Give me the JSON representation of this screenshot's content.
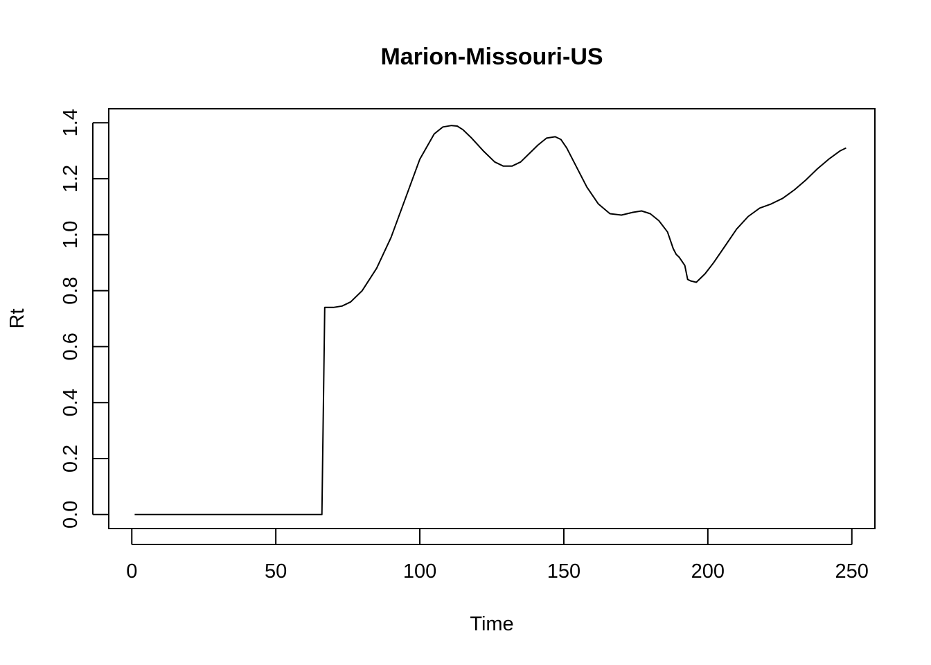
{
  "chart_data": {
    "type": "line",
    "title": "Marion-Missouri-US",
    "xlabel": "Time",
    "ylabel": "Rt",
    "xlim": [
      -8,
      258
    ],
    "ylim": [
      -0.05,
      1.45
    ],
    "xticks": [
      0,
      50,
      100,
      150,
      200,
      250
    ],
    "yticks": [
      0.0,
      0.2,
      0.4,
      0.6,
      0.8,
      1.0,
      1.2,
      1.4
    ],
    "xtick_labels": [
      "0",
      "50",
      "100",
      "150",
      "200",
      "250"
    ],
    "ytick_labels": [
      "0.0",
      "0.2",
      "0.4",
      "0.6",
      "0.8",
      "1.0",
      "1.2",
      "1.4"
    ],
    "grid": false,
    "series": [
      {
        "x": [
          1,
          10,
          20,
          30,
          40,
          50,
          60,
          66,
          67,
          70,
          73,
          76,
          80,
          85,
          90,
          95,
          100,
          105,
          108,
          111,
          113,
          115,
          118,
          122,
          126,
          129,
          132,
          135,
          138,
          141,
          144,
          147,
          149,
          151,
          154,
          158,
          162,
          166,
          170,
          174,
          177,
          180,
          183,
          186,
          188,
          189,
          190,
          192,
          193,
          194,
          196,
          199,
          202,
          206,
          210,
          214,
          218,
          222,
          226,
          230,
          234,
          238,
          242,
          246,
          248
        ],
        "y": [
          0.0,
          0.0,
          0.0,
          0.0,
          0.0,
          0.0,
          0.0,
          0.0,
          0.74,
          0.74,
          0.745,
          0.76,
          0.8,
          0.88,
          0.99,
          1.13,
          1.27,
          1.36,
          1.385,
          1.39,
          1.388,
          1.375,
          1.345,
          1.3,
          1.26,
          1.245,
          1.245,
          1.26,
          1.29,
          1.32,
          1.345,
          1.35,
          1.34,
          1.31,
          1.25,
          1.17,
          1.11,
          1.075,
          1.07,
          1.08,
          1.085,
          1.075,
          1.05,
          1.01,
          0.95,
          0.93,
          0.92,
          0.89,
          0.84,
          0.835,
          0.83,
          0.86,
          0.9,
          0.96,
          1.02,
          1.065,
          1.095,
          1.11,
          1.13,
          1.16,
          1.195,
          1.235,
          1.27,
          1.3,
          1.31
        ]
      }
    ]
  }
}
